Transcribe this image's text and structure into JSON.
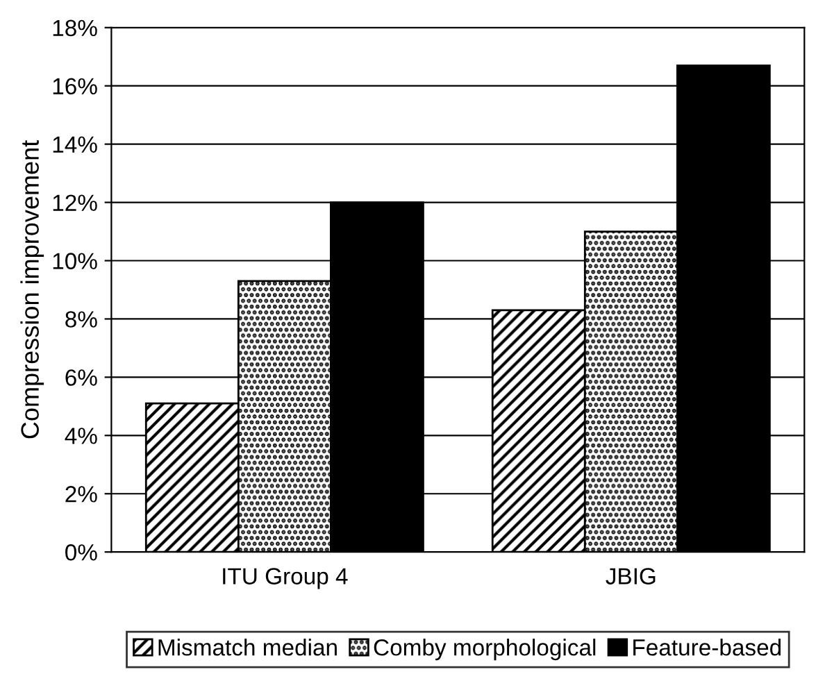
{
  "chart_data": {
    "type": "bar",
    "ylabel": "Compression improvement",
    "categories": [
      "ITU Group 4",
      "JBIG"
    ],
    "series": [
      {
        "name": "Mismatch median",
        "color": "#000000",
        "values": [
          5.1,
          8.3
        ]
      },
      {
        "name": "Comby morphological",
        "color": "#000000",
        "values": [
          9.3,
          11.0
        ]
      },
      {
        "name": "Feature-based",
        "color": "#000000",
        "values": [
          12.0,
          16.7
        ]
      }
    ],
    "ylim": [
      0,
      18
    ],
    "yticks": [
      {
        "value": 0,
        "label": "0%"
      },
      {
        "value": 2,
        "label": "2%"
      },
      {
        "value": 4,
        "label": "4%"
      },
      {
        "value": 6,
        "label": "6%"
      },
      {
        "value": 8,
        "label": "8%"
      },
      {
        "value": 10,
        "label": "10%"
      },
      {
        "value": 12,
        "label": "12%"
      },
      {
        "value": 14,
        "label": "14%"
      },
      {
        "value": 16,
        "label": "16%"
      },
      {
        "value": 18,
        "label": "18%"
      }
    ],
    "grid": "y",
    "legend": "bottom"
  }
}
